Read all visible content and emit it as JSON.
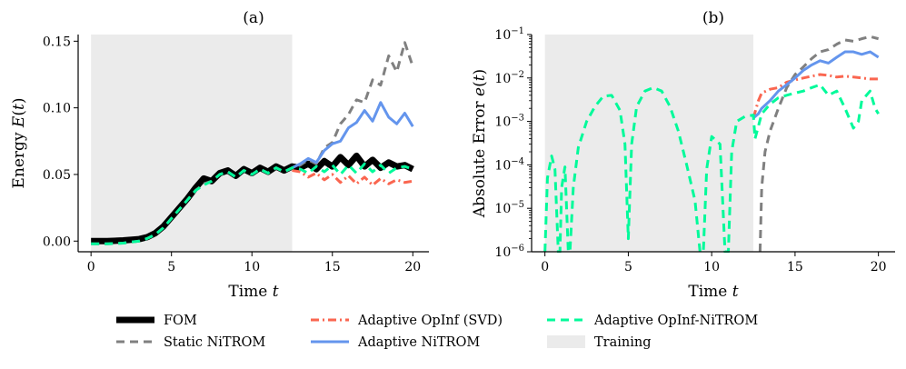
{
  "figure": {
    "legend": [
      {
        "name": "FOM",
        "color": "#000000",
        "dash": "",
        "width": 7
      },
      {
        "name": "Static NiTROM",
        "color": "#808080",
        "dash": "9,6",
        "width": 3
      },
      {
        "name": "Adaptive OpInf (SVD)",
        "color": "#fa6650",
        "dash": "9,4,2,4",
        "width": 3
      },
      {
        "name": "Adaptive NiTROM",
        "color": "#6495ed",
        "dash": "",
        "width": 3
      },
      {
        "name": "Adaptive OpInf-NiTROM",
        "color": "#00fa9a",
        "dash": "9,6",
        "width": 3
      },
      {
        "name": "Training",
        "color": "#ebebeb",
        "patch": true
      }
    ]
  },
  "chart_data": [
    {
      "type": "line",
      "title": "(a)",
      "xlabel": "Time t",
      "ylabel": "Energy E(t)",
      "xlim": [
        -0.8,
        21
      ],
      "ylim": [
        -0.008,
        0.155
      ],
      "yscale": "linear",
      "xticks": [
        0,
        5,
        10,
        15,
        20
      ],
      "xtick_labels": [
        "0",
        "5",
        "10",
        "15",
        "20"
      ],
      "yticks": [
        0.0,
        0.05,
        0.1,
        0.15
      ],
      "ytick_labels": [
        "0.00",
        "0.05",
        "0.10",
        "0.15"
      ],
      "training_span": [
        0,
        12.5
      ],
      "series": [
        {
          "name": "FOM",
          "x": [
            0,
            1,
            2,
            3,
            3.5,
            4,
            4.5,
            5,
            5.5,
            6,
            6.5,
            7,
            7.5,
            8,
            8.5,
            9,
            9.5,
            10,
            10.5,
            11,
            11.5,
            12,
            12.5,
            13,
            13.5,
            14,
            14.5,
            15,
            15.5,
            16,
            16.5,
            17,
            17.5,
            18,
            18.5,
            19,
            19.5,
            20
          ],
          "y": [
            0.0,
            0.0,
            0.0005,
            0.0015,
            0.003,
            0.006,
            0.011,
            0.018,
            0.025,
            0.032,
            0.04,
            0.047,
            0.045,
            0.051,
            0.053,
            0.049,
            0.054,
            0.051,
            0.055,
            0.052,
            0.056,
            0.053,
            0.056,
            0.055,
            0.058,
            0.054,
            0.06,
            0.056,
            0.063,
            0.057,
            0.064,
            0.056,
            0.061,
            0.055,
            0.059,
            0.056,
            0.057,
            0.054
          ]
        },
        {
          "name": "Static NiTROM",
          "x": [
            0,
            1,
            2,
            3,
            3.5,
            4,
            4.5,
            5,
            5.5,
            6,
            6.5,
            7,
            7.5,
            8,
            8.5,
            9,
            9.5,
            10,
            10.5,
            11,
            11.5,
            12,
            12.5,
            13,
            13.5,
            14,
            14.5,
            15,
            15.5,
            16,
            16.5,
            17,
            17.5,
            18,
            18.5,
            19,
            19.5,
            20
          ],
          "y": [
            -0.002,
            -0.002,
            -0.0015,
            0.0,
            0.002,
            0.005,
            0.01,
            0.017,
            0.024,
            0.031,
            0.038,
            0.043,
            0.045,
            0.05,
            0.052,
            0.048,
            0.053,
            0.05,
            0.054,
            0.051,
            0.055,
            0.052,
            0.055,
            0.057,
            0.061,
            0.058,
            0.07,
            0.074,
            0.088,
            0.095,
            0.106,
            0.104,
            0.121,
            0.117,
            0.139,
            0.127,
            0.149,
            0.131
          ]
        },
        {
          "name": "Adaptive OpInf (SVD)",
          "x": [
            12.5,
            13,
            13.5,
            14,
            14.5,
            15,
            15.5,
            16,
            16.5,
            17,
            17.5,
            18,
            18.5,
            19,
            19.5,
            20
          ],
          "y": [
            0.053,
            0.052,
            0.048,
            0.051,
            0.046,
            0.05,
            0.044,
            0.049,
            0.043,
            0.048,
            0.042,
            0.047,
            0.043,
            0.046,
            0.044,
            0.045
          ]
        },
        {
          "name": "Adaptive NiTROM",
          "x": [
            12.5,
            13,
            13.5,
            14,
            14.5,
            15,
            15.5,
            16,
            16.5,
            17,
            17.5,
            18,
            18.5,
            19,
            19.5,
            20
          ],
          "y": [
            0.055,
            0.058,
            0.062,
            0.059,
            0.068,
            0.073,
            0.075,
            0.085,
            0.089,
            0.098,
            0.09,
            0.104,
            0.093,
            0.088,
            0.096,
            0.086
          ]
        },
        {
          "name": "Adaptive OpInf-NiTROM",
          "x": [
            0,
            1,
            2,
            3,
            3.5,
            4,
            4.5,
            5,
            5.5,
            6,
            6.5,
            7,
            7.5,
            8,
            8.5,
            9,
            9.5,
            10,
            10.5,
            11,
            11.5,
            12,
            12.5,
            13,
            13.5,
            14,
            14.5,
            15,
            15.5,
            16,
            16.5,
            17,
            17.5,
            18,
            18.5,
            19,
            19.5,
            20
          ],
          "y": [
            -0.002,
            -0.002,
            -0.0015,
            0.0,
            0.002,
            0.005,
            0.01,
            0.017,
            0.024,
            0.031,
            0.038,
            0.042,
            0.045,
            0.05,
            0.052,
            0.048,
            0.053,
            0.05,
            0.054,
            0.051,
            0.055,
            0.052,
            0.055,
            0.054,
            0.051,
            0.056,
            0.052,
            0.057,
            0.05,
            0.057,
            0.051,
            0.058,
            0.052,
            0.057,
            0.051,
            0.055,
            0.056,
            0.054
          ]
        }
      ]
    },
    {
      "type": "line",
      "title": "(b)",
      "xlabel": "Time t",
      "ylabel": "Absolute Error e(t)",
      "xlim": [
        -0.8,
        21
      ],
      "ylim": [
        1e-06,
        0.1
      ],
      "yscale": "log",
      "xticks": [
        0,
        5,
        10,
        15,
        20
      ],
      "xtick_labels": [
        "0",
        "5",
        "10",
        "15",
        "20"
      ],
      "yticks": [
        1e-06,
        1e-05,
        0.0001,
        0.001,
        0.01,
        0.1
      ],
      "ytick_labels": [
        "10^-6",
        "10^-5",
        "10^-4",
        "10^-3",
        "10^-2",
        "10^-1"
      ],
      "training_span": [
        0,
        12.5
      ],
      "series": [
        {
          "name": "Static NiTROM",
          "x": [
            12.9,
            13.0,
            13.2,
            13.5,
            14,
            14.5,
            15,
            15.5,
            16,
            16.5,
            17,
            17.5,
            18,
            18.5,
            19,
            19.5,
            20
          ],
          "y": [
            1e-06,
            3e-05,
            0.0002,
            0.0006,
            0.002,
            0.006,
            0.012,
            0.018,
            0.028,
            0.04,
            0.045,
            0.06,
            0.075,
            0.07,
            0.08,
            0.09,
            0.08
          ]
        },
        {
          "name": "Adaptive OpInf (SVD)",
          "x": [
            12.5,
            12.8,
            13,
            13.5,
            14,
            14.5,
            15,
            15.5,
            16,
            16.5,
            17,
            17.5,
            18,
            18.5,
            19,
            19.5,
            20
          ],
          "y": [
            0.0012,
            0.003,
            0.0045,
            0.0055,
            0.006,
            0.008,
            0.009,
            0.01,
            0.011,
            0.012,
            0.0115,
            0.0105,
            0.011,
            0.0105,
            0.01,
            0.0095,
            0.0095
          ]
        },
        {
          "name": "Adaptive NiTROM",
          "x": [
            12.5,
            12.8,
            13,
            13.5,
            14,
            14.5,
            15,
            15.5,
            16,
            16.5,
            17,
            17.5,
            18,
            18.5,
            19,
            19.5,
            20
          ],
          "y": [
            0.0012,
            0.0015,
            0.002,
            0.003,
            0.005,
            0.007,
            0.01,
            0.015,
            0.02,
            0.025,
            0.022,
            0.03,
            0.04,
            0.04,
            0.035,
            0.04,
            0.03
          ]
        },
        {
          "name": "Adaptive OpInf-NiTROM",
          "x": [
            0,
            0.15,
            0.4,
            0.6,
            0.8,
            0.9,
            1.0,
            1.2,
            1.4,
            1.5,
            1.7,
            2,
            2.5,
            3,
            3.5,
            4,
            4.5,
            4.8,
            5.0,
            5.2,
            5.5,
            6,
            6.5,
            7,
            7.5,
            8,
            8.5,
            9,
            9.3,
            9.5,
            9.7,
            10,
            10.5,
            10.8,
            11,
            11.2,
            11.5,
            12,
            12.5,
            12.6,
            13,
            13.5,
            14,
            14.5,
            15,
            15.5,
            16,
            16.5,
            17,
            17.5,
            18,
            18.5,
            18.8,
            19,
            19.5,
            19.8,
            20
          ],
          "y": [
            1e-06,
            5e-05,
            0.00016,
            8e-05,
            1e-06,
            1e-06,
            3e-05,
            9e-05,
            1e-06,
            1e-06,
            3e-05,
            0.00025,
            0.001,
            0.0022,
            0.0038,
            0.004,
            0.0018,
            0.0003,
            2e-06,
            0.0003,
            0.0022,
            0.005,
            0.006,
            0.005,
            0.0022,
            0.0006,
            0.0001,
            1.5e-05,
            1e-06,
            1e-06,
            8e-05,
            0.00045,
            0.0003,
            1e-06,
            1e-06,
            0.0002,
            0.001,
            0.0013,
            0.0014,
            0.0004,
            0.0015,
            0.0025,
            0.0035,
            0.004,
            0.0045,
            0.005,
            0.006,
            0.007,
            0.004,
            0.005,
            0.002,
            0.0007,
            0.001,
            0.003,
            0.005,
            0.002,
            0.0015
          ]
        }
      ]
    }
  ]
}
